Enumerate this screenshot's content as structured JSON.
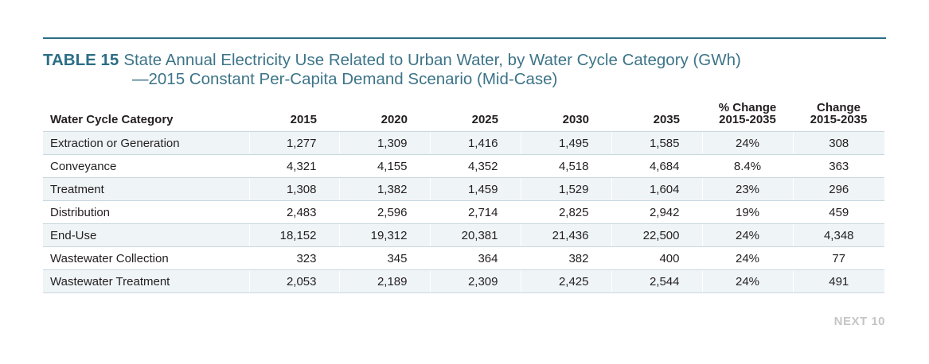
{
  "title": {
    "label": "TABLE 15",
    "line1": "State Annual Electricity Use Related to Urban Water, by Water Cycle Category (GWh)",
    "line2": "—2015 Constant Per-Capita Demand Scenario (Mid-Case)"
  },
  "table": {
    "headers": {
      "category": "Water Cycle Category",
      "y2015": "2015",
      "y2020": "2020",
      "y2025": "2025",
      "y2030": "2030",
      "y2035": "2035",
      "pct_change_line1": "% Change",
      "pct_change_line2": "2015-2035",
      "change_line1": "Change",
      "change_line2": "2015-2035"
    },
    "rows": [
      {
        "category": "Extraction or Generation",
        "y2015": "1,277",
        "y2020": "1,309",
        "y2025": "1,416",
        "y2030": "1,495",
        "y2035": "1,585",
        "pct_change": "24%",
        "change": "308"
      },
      {
        "category": "Conveyance",
        "y2015": "4,321",
        "y2020": "4,155",
        "y2025": "4,352",
        "y2030": "4,518",
        "y2035": "4,684",
        "pct_change": "8.4%",
        "change": "363"
      },
      {
        "category": "Treatment",
        "y2015": "1,308",
        "y2020": "1,382",
        "y2025": "1,459",
        "y2030": "1,529",
        "y2035": "1,604",
        "pct_change": "23%",
        "change": "296"
      },
      {
        "category": "Distribution",
        "y2015": "2,483",
        "y2020": "2,596",
        "y2025": "2,714",
        "y2030": "2,825",
        "y2035": "2,942",
        "pct_change": "19%",
        "change": "459"
      },
      {
        "category": "End-Use",
        "y2015": "18,152",
        "y2020": "19,312",
        "y2025": "20,381",
        "y2030": "21,436",
        "y2035": "22,500",
        "pct_change": "24%",
        "change": "4,348"
      },
      {
        "category": "Wastewater Collection",
        "y2015": "323",
        "y2020": "345",
        "y2025": "364",
        "y2030": "382",
        "y2035": "400",
        "pct_change": "24%",
        "change": "77"
      },
      {
        "category": "Wastewater Treatment",
        "y2015": "2,053",
        "y2020": "2,189",
        "y2025": "2,309",
        "y2030": "2,425",
        "y2035": "2,544",
        "pct_change": "24%",
        "change": "491"
      }
    ]
  },
  "footer": {
    "brand": "NEXT 10"
  },
  "colors": {
    "accent": "#2b6e85",
    "title_text": "#3d7488",
    "row_band": "#eff4f7",
    "rule": "#c8d7de",
    "brand_gray": "#c5c5c5"
  }
}
